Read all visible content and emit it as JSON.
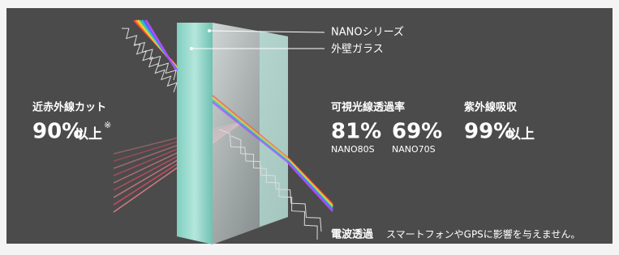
{
  "labels": {
    "series": "NANOシリーズ",
    "outer_glass": "外壁ガラス"
  },
  "infrared": {
    "title": "近赤外線カット",
    "value": "90%",
    "suffix": "以上",
    "note": "※"
  },
  "visible": {
    "title": "可視光線透過率",
    "items": [
      {
        "value": "81%",
        "model": "NANO80S"
      },
      {
        "value": "69%",
        "model": "NANO70S"
      }
    ]
  },
  "uv": {
    "title": "紫外線吸収",
    "value": "99%",
    "suffix": "以上"
  },
  "radio": {
    "title": "電波透過",
    "text": "スマートフォンやGPSに影響を与えません。"
  }
}
